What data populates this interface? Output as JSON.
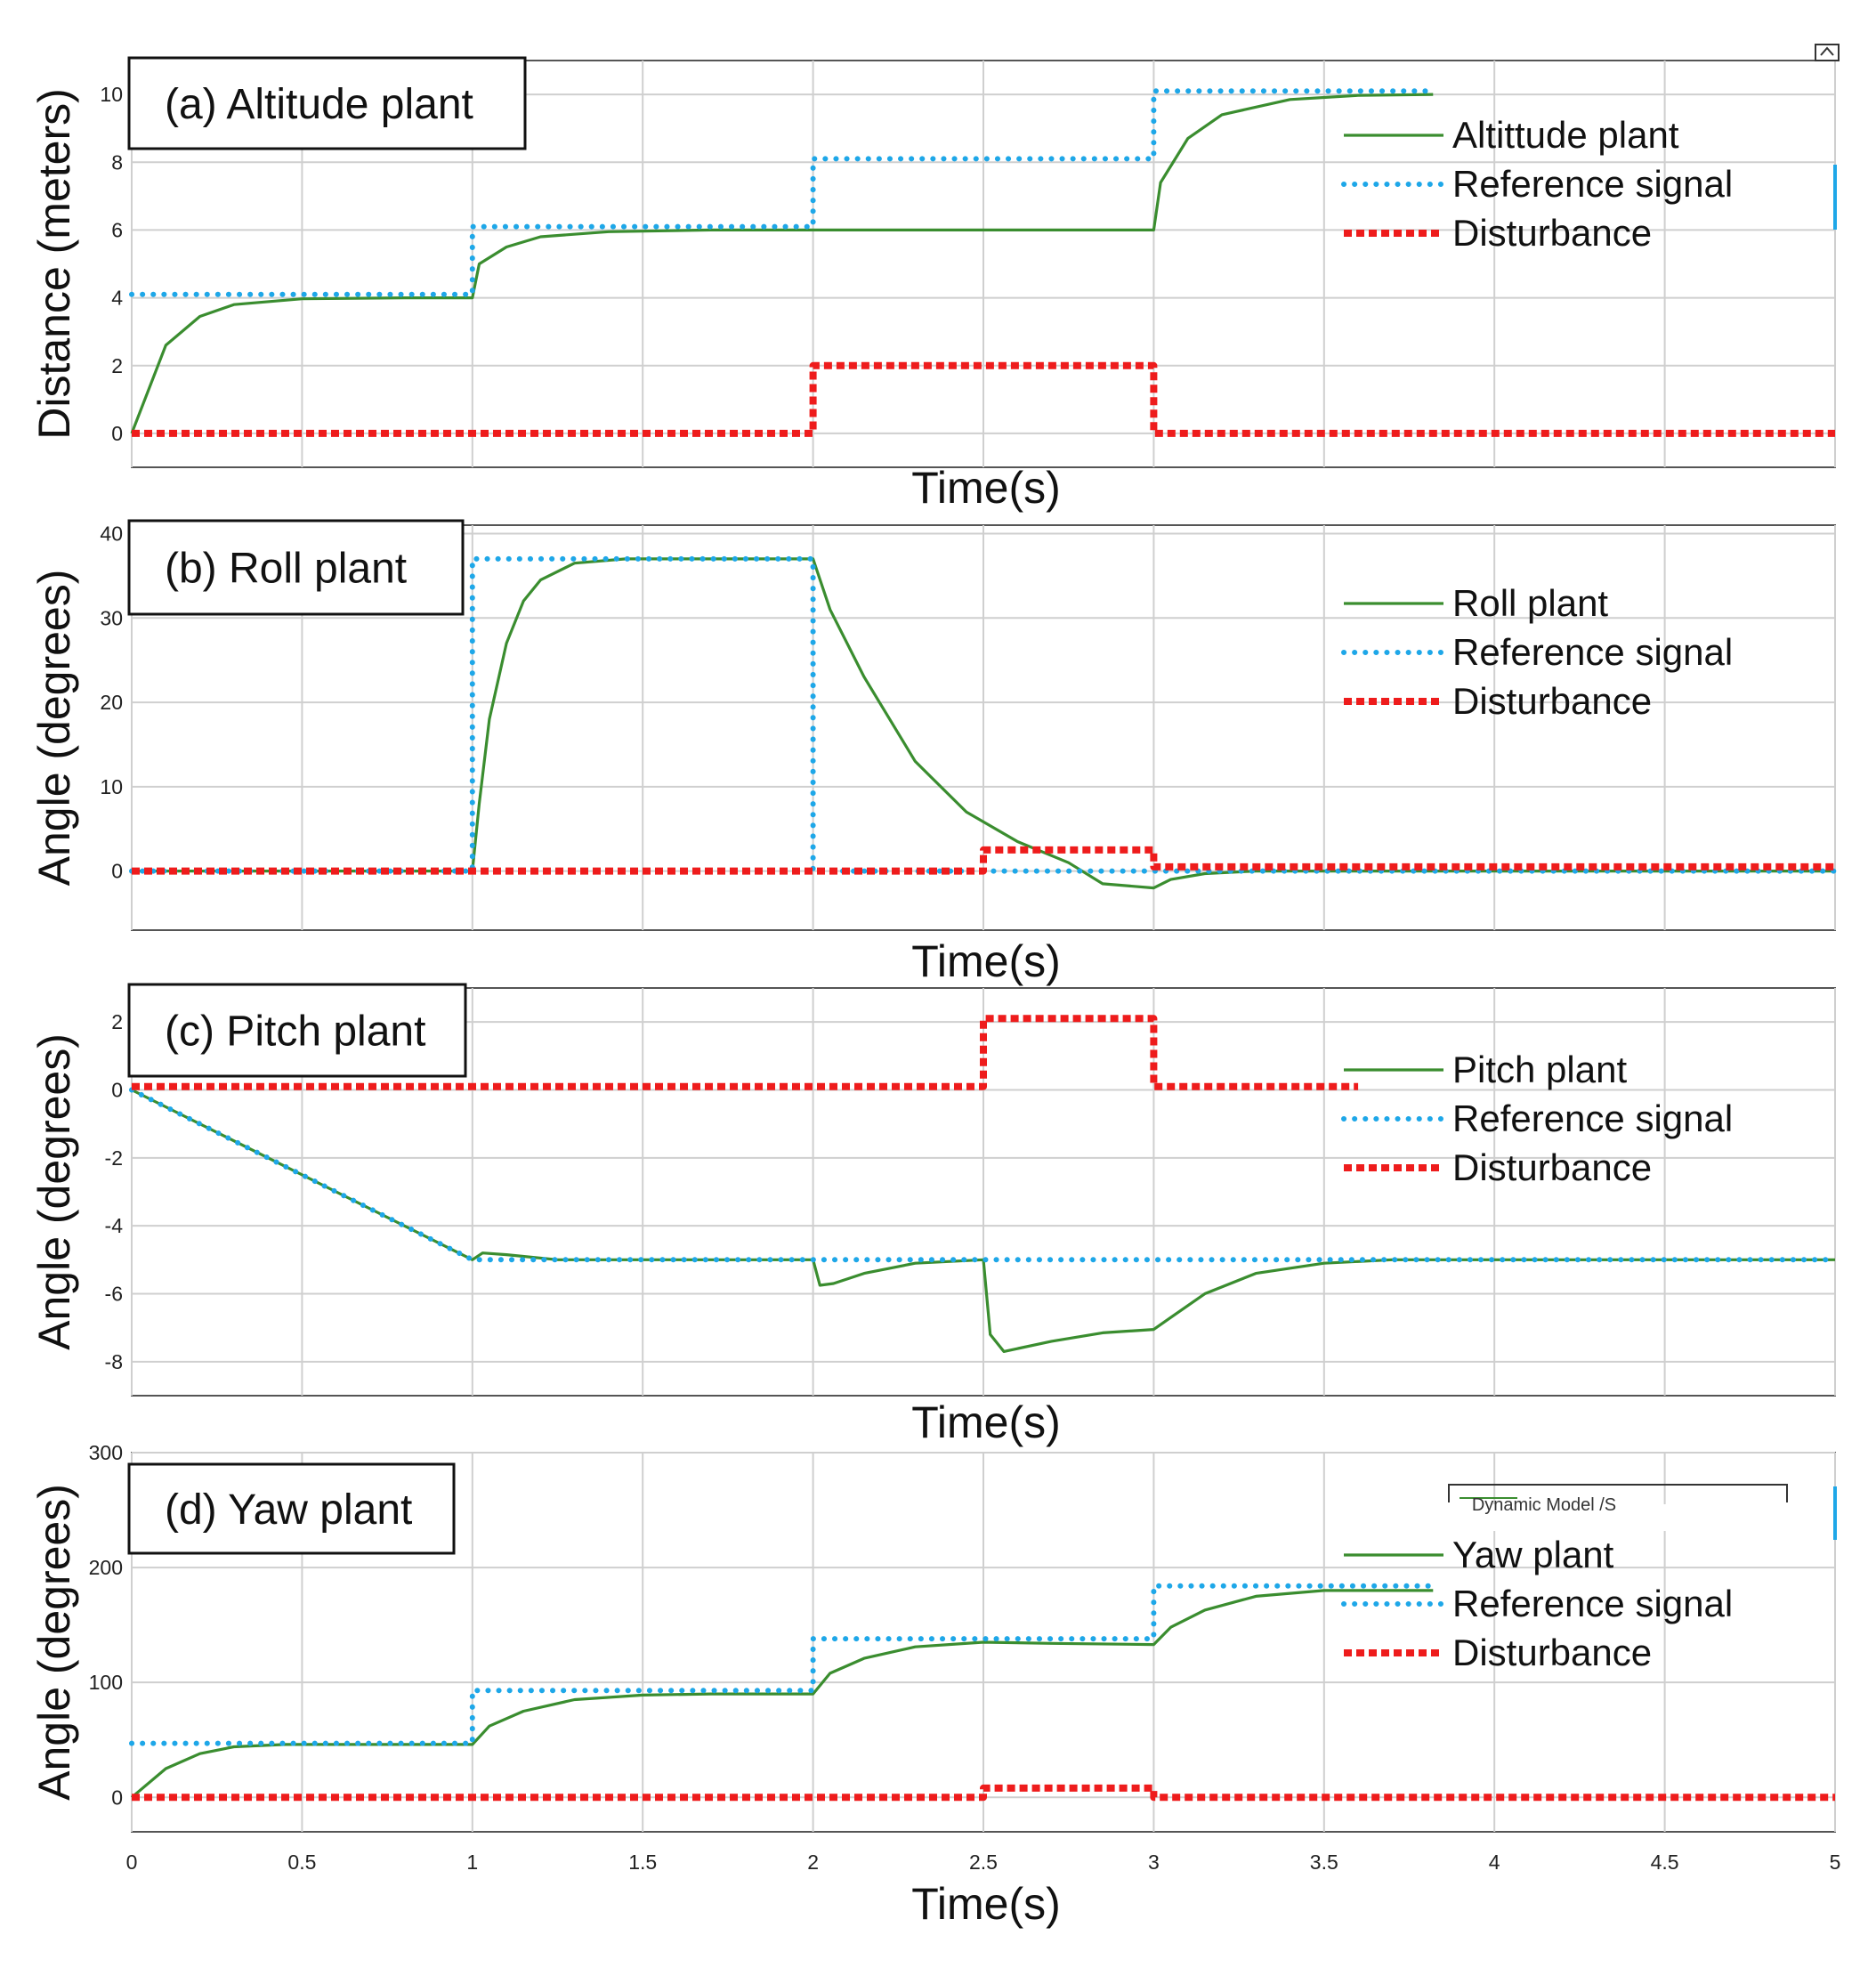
{
  "chart_data": [
    {
      "type": "line",
      "title": "(a) Altitude plant",
      "xlabel": "Time(s)",
      "ylabel": "Distance (meters)",
      "xlim": [
        0,
        5
      ],
      "ylim": [
        -1,
        11
      ],
      "yticks": [
        0,
        2,
        4,
        6,
        8,
        10
      ],
      "ytick_labels": [
        "0",
        "2",
        "4",
        "6",
        "8",
        "10"
      ],
      "legend": [
        "Altittude plant",
        "Reference signal",
        "Disturbance"
      ],
      "legend_position": "top-right",
      "series": [
        {
          "name": "Altittude plant",
          "style": "solid",
          "color": "#3a8d2f",
          "x": [
            0,
            0.1,
            0.2,
            0.3,
            0.5,
            0.8,
            1.0,
            1.02,
            1.1,
            1.2,
            1.4,
            1.7,
            2.0,
            3.0,
            3.02,
            3.1,
            3.2,
            3.4,
            3.6,
            3.82
          ],
          "y": [
            0,
            2.6,
            3.45,
            3.8,
            3.97,
            4.0,
            4.0,
            5.0,
            5.5,
            5.8,
            5.95,
            6.0,
            6.0,
            6.0,
            7.4,
            8.7,
            9.4,
            9.85,
            9.97,
            10.0
          ]
        },
        {
          "name": "Reference signal",
          "style": "dotted",
          "color": "#1ea7e8",
          "x": [
            0,
            1,
            1,
            2,
            2,
            3,
            3,
            3.82
          ],
          "y": [
            4.1,
            4.1,
            6.1,
            6.1,
            8.1,
            8.1,
            10.1,
            10.1
          ]
        },
        {
          "name": "Disturbance",
          "style": "dashed",
          "color": "#ee1c1c",
          "x": [
            0,
            2,
            2,
            3,
            3,
            5
          ],
          "y": [
            0,
            0,
            2,
            2,
            0,
            0
          ]
        }
      ]
    },
    {
      "type": "line",
      "title": "(b) Roll plant",
      "xlabel": "Time(s)",
      "ylabel": "Angle (degrees)",
      "xlim": [
        0,
        5
      ],
      "ylim": [
        -7,
        41
      ],
      "yticks": [
        0,
        10,
        20,
        30,
        40
      ],
      "ytick_labels": [
        "0",
        "10",
        "20",
        "30",
        "40"
      ],
      "legend": [
        "Roll plant",
        "Reference signal",
        "Disturbance"
      ],
      "legend_position": "top-right",
      "series": [
        {
          "name": "Roll plant",
          "style": "solid",
          "color": "#3a8d2f",
          "x": [
            0,
            1.0,
            1.02,
            1.05,
            1.1,
            1.15,
            1.2,
            1.3,
            1.45,
            1.7,
            2.0,
            2.05,
            2.15,
            2.3,
            2.45,
            2.6,
            2.75,
            2.85,
            3.0,
            3.05,
            3.15,
            3.3,
            5.0
          ],
          "y": [
            0,
            0,
            8,
            18,
            27,
            32,
            34.5,
            36.5,
            37,
            37,
            37,
            31,
            23,
            13,
            7,
            3.5,
            1,
            -1.5,
            -2,
            -1,
            -0.3,
            0,
            0
          ]
        },
        {
          "name": "Reference signal",
          "style": "dotted",
          "color": "#1ea7e8",
          "x": [
            0,
            1,
            1,
            2,
            2,
            5
          ],
          "y": [
            0,
            0,
            37,
            37,
            0,
            0
          ]
        },
        {
          "name": "Disturbance",
          "style": "dashed",
          "color": "#ee1c1c",
          "x": [
            0,
            2.5,
            2.5,
            3,
            3,
            5
          ],
          "y": [
            0,
            0,
            2.5,
            2.5,
            0.5,
            0.5
          ]
        }
      ]
    },
    {
      "type": "line",
      "title": "(c) Pitch plant",
      "xlabel": "Time(s)",
      "ylabel": "Angle (degrees)",
      "xlim": [
        0,
        5
      ],
      "ylim": [
        -9,
        3
      ],
      "yticks": [
        -8,
        -6,
        -4,
        -2,
        0,
        2
      ],
      "ytick_labels": [
        "-8",
        "-6",
        "-4",
        "-2",
        "0",
        "2"
      ],
      "legend": [
        "Pitch plant",
        "Reference signal",
        "Disturbance"
      ],
      "legend_position": "top-right",
      "series": [
        {
          "name": "Pitch plant",
          "style": "solid",
          "color": "#3a8d2f",
          "x": [
            0,
            1.0,
            1.03,
            1.1,
            1.25,
            2.0,
            2.02,
            2.06,
            2.15,
            2.3,
            2.5,
            2.5,
            2.52,
            2.56,
            2.7,
            2.85,
            3.0,
            3.05,
            3.15,
            3.3,
            3.5,
            3.7,
            5.0
          ],
          "y": [
            0,
            -5,
            -4.8,
            -4.85,
            -5,
            -5,
            -5.75,
            -5.7,
            -5.4,
            -5.1,
            -5,
            -5,
            -7.2,
            -7.7,
            -7.4,
            -7.15,
            -7.05,
            -6.7,
            -6.0,
            -5.4,
            -5.1,
            -5,
            -5
          ]
        },
        {
          "name": "Reference signal",
          "style": "dotted",
          "color": "#1ea7e8",
          "x": [
            0,
            1,
            5
          ],
          "y": [
            0,
            -5,
            -5
          ]
        },
        {
          "name": "Disturbance",
          "style": "dashed",
          "color": "#ee1c1c",
          "x": [
            0,
            2.5,
            2.5,
            3,
            3,
            3.6
          ],
          "y": [
            0.1,
            0.1,
            2.1,
            2.1,
            0.1,
            0.1
          ]
        }
      ]
    },
    {
      "type": "line",
      "title": "(d) Yaw plant",
      "xlabel": "Time(s)",
      "ylabel": "Angle (degrees)",
      "xlim": [
        0,
        5
      ],
      "ylim": [
        -30,
        300
      ],
      "yticks": [
        0,
        100,
        200,
        300
      ],
      "ytick_labels": [
        "0",
        "100",
        "200",
        "300"
      ],
      "xticks": [
        0,
        0.5,
        1,
        1.5,
        2,
        2.5,
        3,
        3.5,
        4,
        4.5,
        5
      ],
      "xtick_labels": [
        "0",
        "0.5",
        "1",
        "1.5",
        "2",
        "2.5",
        "3",
        "3.5",
        "4",
        "4.5",
        "5"
      ],
      "legend": [
        "Yaw plant",
        "Reference signal",
        "Disturbance"
      ],
      "legend_position": "top-right",
      "series": [
        {
          "name": "Yaw plant",
          "style": "solid",
          "color": "#3a8d2f",
          "x": [
            0,
            0.1,
            0.2,
            0.3,
            0.45,
            0.7,
            1.0,
            1.05,
            1.15,
            1.3,
            1.5,
            1.7,
            2.0,
            2.05,
            2.15,
            2.3,
            2.5,
            2.7,
            3.0,
            3.05,
            3.15,
            3.3,
            3.5,
            3.7,
            3.82
          ],
          "y": [
            0,
            25,
            38,
            44,
            46,
            46,
            46,
            62,
            75,
            85,
            89,
            90,
            90,
            108,
            121,
            131,
            135,
            134,
            133,
            148,
            163,
            175,
            180,
            180,
            180
          ]
        },
        {
          "name": "Reference signal",
          "style": "dotted",
          "color": "#1ea7e8",
          "x": [
            0,
            1,
            1,
            2,
            2,
            3,
            3,
            3.82
          ],
          "y": [
            47,
            47,
            93,
            93,
            138,
            138,
            184,
            184
          ]
        },
        {
          "name": "Disturbance",
          "style": "dashed",
          "color": "#ee1c1c",
          "x": [
            0,
            2.5,
            2.5,
            3,
            3,
            5
          ],
          "y": [
            0,
            0,
            8,
            8,
            0,
            0
          ]
        }
      ]
    }
  ],
  "overlay_text": {
    "clipped_legend": "Dynamic Model /S"
  }
}
